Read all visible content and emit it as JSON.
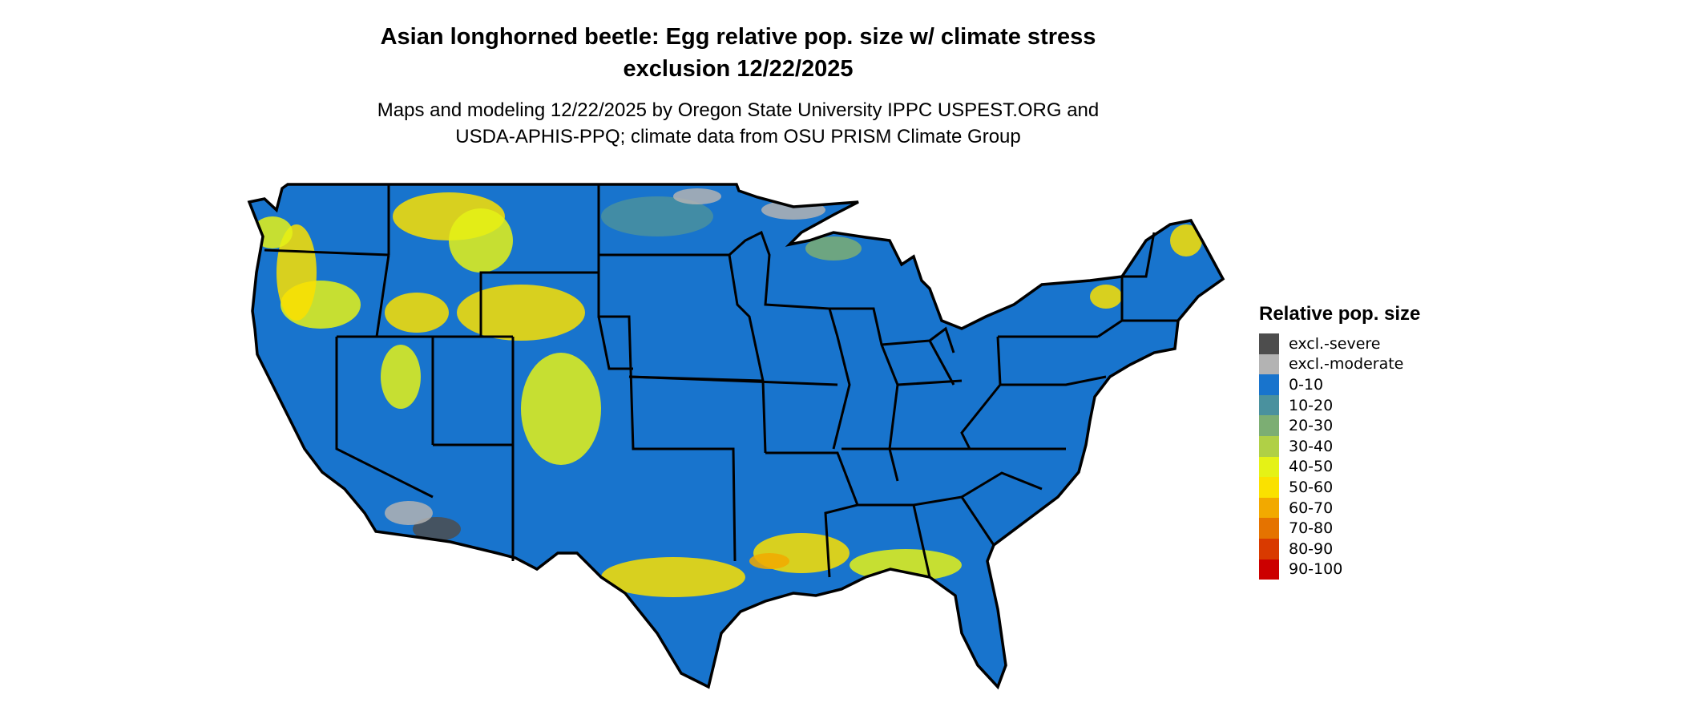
{
  "title_line1": "Asian longhorned beetle: Egg relative pop. size w/ climate stress",
  "title_line2": "exclusion 12/22/2025",
  "subtitle_line1": "Maps and modeling 12/22/2025 by Oregon State University IPPC USPEST.ORG and",
  "subtitle_line2": "USDA-APHIS-PPQ; climate data from OSU PRISM Climate Group",
  "map_region": "Contiguous United States",
  "legend": {
    "title": "Relative pop. size",
    "items": [
      {
        "label": "excl.-severe",
        "color": "#4d4d4d"
      },
      {
        "label": "excl.-moderate",
        "color": "#b3b3b3"
      },
      {
        "label": "0-10",
        "color": "#1874cd"
      },
      {
        "label": "10-20",
        "color": "#4a919e"
      },
      {
        "label": "20-30",
        "color": "#7cae73"
      },
      {
        "label": "30-40",
        "color": "#b0d046"
      },
      {
        "label": "40-50",
        "color": "#e5f216"
      },
      {
        "label": "50-60",
        "color": "#fae100"
      },
      {
        "label": "60-70",
        "color": "#f2a900"
      },
      {
        "label": "70-80",
        "color": "#e57300"
      },
      {
        "label": "80-90",
        "color": "#d93a00"
      },
      {
        "label": "90-100",
        "color": "#cc0000"
      }
    ]
  }
}
